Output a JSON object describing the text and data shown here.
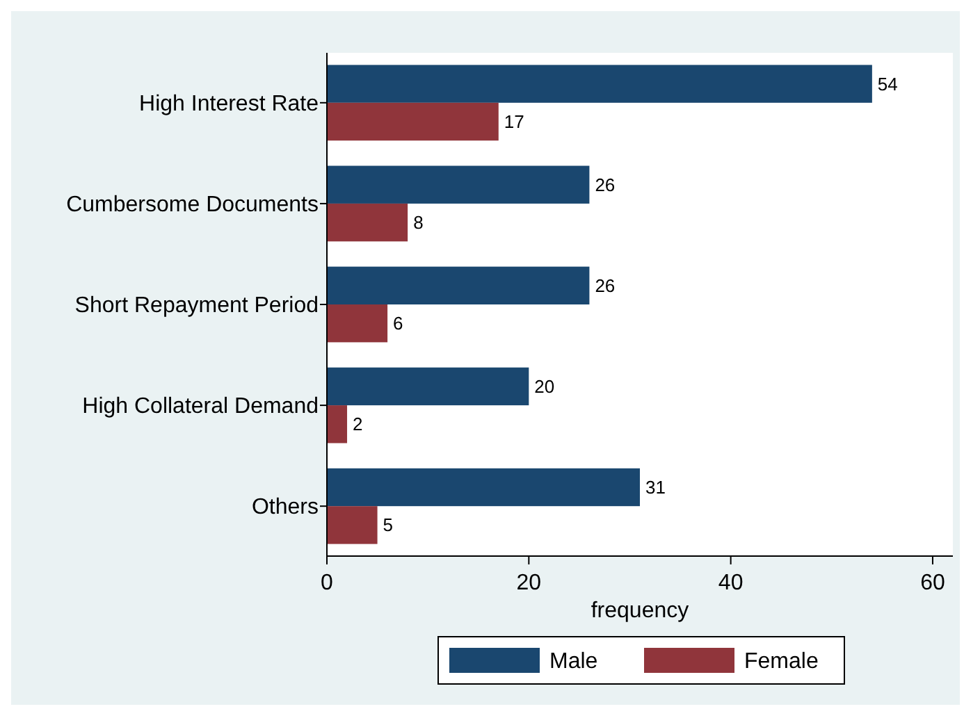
{
  "chart_data": {
    "type": "bar",
    "orientation": "horizontal",
    "xlabel": "frequency",
    "categories": [
      "High Interest Rate",
      "Cumbersome Documents",
      "Short Repayment Period",
      "High Collateral Demand",
      "Others"
    ],
    "series": [
      {
        "name": "Male",
        "color": "#1a476f",
        "values": [
          54,
          26,
          26,
          20,
          31
        ]
      },
      {
        "name": "Female",
        "color": "#90353b",
        "values": [
          17,
          8,
          6,
          2,
          5
        ]
      }
    ],
    "xlim": [
      0,
      62
    ],
    "xticks": [
      0,
      20,
      40,
      60
    ],
    "grid": false,
    "legend": "bottom",
    "data_labels": true
  }
}
